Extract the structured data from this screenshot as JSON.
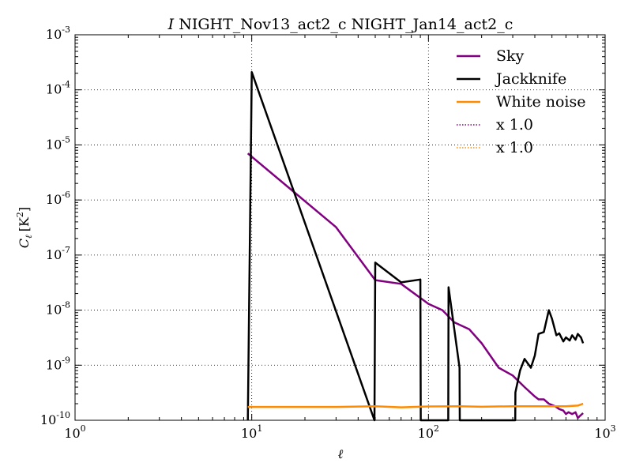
{
  "chart_data": {
    "type": "line",
    "title": "I NIGHT_Nov13_act2_c NIGHT_Jan14_act2_c",
    "title_italic_prefix": "I",
    "title_rest": " NIGHT_Nov13_act2_c NIGHT_Jan14_act2_c",
    "xlabel": "ℓ",
    "ylabel_main": "C",
    "ylabel_sub": "ℓ",
    "ylabel_unit": "[K",
    "ylabel_unit_sup": "2",
    "ylabel_unit_end": "]",
    "xscale": "log",
    "yscale": "log",
    "xlim": [
      1,
      1000
    ],
    "ylim": [
      1e-10,
      0.001
    ],
    "grid": true,
    "legend_position": "top-right",
    "x_ticks": [
      {
        "value": 1,
        "base": "10",
        "exp": "0"
      },
      {
        "value": 10,
        "base": "10",
        "exp": "1"
      },
      {
        "value": 100,
        "base": "10",
        "exp": "2"
      },
      {
        "value": 1000,
        "base": "10",
        "exp": "3"
      }
    ],
    "y_ticks": [
      {
        "value": 1e-10,
        "base": "10",
        "exp": "-10"
      },
      {
        "value": 1e-09,
        "base": "10",
        "exp": "-9"
      },
      {
        "value": 1e-08,
        "base": "10",
        "exp": "-8"
      },
      {
        "value": 1e-07,
        "base": "10",
        "exp": "-7"
      },
      {
        "value": 1e-06,
        "base": "10",
        "exp": "-6"
      },
      {
        "value": 1e-05,
        "base": "10",
        "exp": "-5"
      },
      {
        "value": 0.0001,
        "base": "10",
        "exp": "-4"
      },
      {
        "value": 0.001,
        "base": "10",
        "exp": "-3"
      }
    ],
    "series": [
      {
        "name": "Sky",
        "color": "#800080",
        "style": "solid",
        "x": [
          9.5,
          30,
          50,
          70,
          100,
          120,
          140,
          170,
          200,
          250,
          300,
          350,
          400,
          420,
          450,
          480,
          500,
          520,
          550,
          580,
          600,
          620,
          650,
          680,
          700,
          720,
          750
        ],
        "y": [
          7e-06,
          3.2e-07,
          3.5e-08,
          3e-08,
          1.3e-08,
          1e-08,
          6e-09,
          4.5e-09,
          2.5e-09,
          9e-10,
          6.5e-10,
          4e-10,
          2.7e-10,
          2.4e-10,
          2.4e-10,
          2e-10,
          1.9e-10,
          1.8e-10,
          1.6e-10,
          1.5e-10,
          1.3e-10,
          1.4e-10,
          1.3e-10,
          1.4e-10,
          1.1e-10,
          1.2e-10,
          1.35e-10
        ]
      },
      {
        "name": "Jackknife",
        "color": "#000000",
        "style": "solid",
        "x": [
          9.5,
          10,
          49.5,
          50,
          70,
          90,
          90.5,
          129.5,
          130,
          150,
          150.5,
          310,
          310.5,
          330,
          350,
          380,
          400,
          420,
          450,
          480,
          500,
          530,
          550,
          580,
          600,
          630,
          650,
          680,
          700,
          730,
          750
        ],
        "y": [
          1e-10,
          0.00021,
          1e-10,
          7.3e-08,
          3.2e-08,
          3.6e-08,
          1e-10,
          1e-10,
          2.6e-08,
          9e-10,
          1e-10,
          1e-10,
          3.2e-10,
          8e-10,
          1.3e-09,
          9e-10,
          1.5e-09,
          3.7e-09,
          4e-09,
          1e-08,
          7e-09,
          3.5e-09,
          3.8e-09,
          2.7e-09,
          3.2e-09,
          2.8e-09,
          3.5e-09,
          2.9e-09,
          3.7e-09,
          3.2e-09,
          2.5e-09
        ]
      },
      {
        "name": "White noise",
        "color": "#ff8c00",
        "style": "solid",
        "x": [
          9.5,
          20,
          30,
          50,
          70,
          100,
          150,
          200,
          300,
          400,
          500,
          600,
          700,
          750
        ],
        "y": [
          1.75e-10,
          1.75e-10,
          1.75e-10,
          1.8e-10,
          1.72e-10,
          1.78e-10,
          1.8e-10,
          1.76e-10,
          1.8e-10,
          1.8e-10,
          1.8e-10,
          1.8e-10,
          1.85e-10,
          2e-10
        ]
      },
      {
        "name": "x 1.0",
        "color": "#800080",
        "style": "dotted",
        "x": [],
        "y": []
      },
      {
        "name": "x 1.0",
        "color": "#ff8c00",
        "style": "dotted",
        "x": [],
        "y": []
      }
    ]
  }
}
